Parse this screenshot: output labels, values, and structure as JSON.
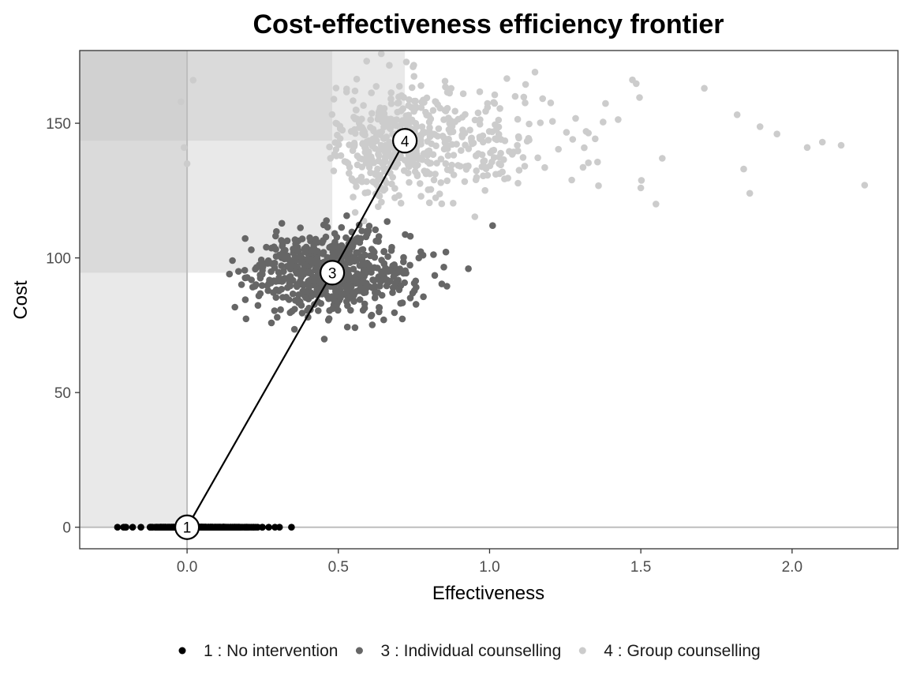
{
  "chart_data": {
    "type": "scatter",
    "title": "Cost-effectiveness efficiency frontier",
    "xlabel": "Effectiveness",
    "ylabel": "Cost",
    "xlim": [
      -0.355,
      2.35
    ],
    "ylim": [
      -8,
      177
    ],
    "x_ticks": [
      0.0,
      0.5,
      1.0,
      1.5,
      2.0
    ],
    "x_tick_labels": [
      "0.0",
      "0.5",
      "1.0",
      "1.5",
      "2.0"
    ],
    "y_ticks": [
      0,
      50,
      100,
      150
    ],
    "y_tick_labels": [
      "0",
      "50",
      "100",
      "150"
    ],
    "grid": false,
    "legend_position": "bottom",
    "series": [
      {
        "id": "1",
        "name": "1 : No intervention",
        "color": "#000000",
        "distribution": {
          "x_mean": 0.04,
          "x_sd": 0.08,
          "y_mean": 0,
          "y_sd": 0
        },
        "sample_points": [
          [
            -0.23,
            0
          ],
          [
            -0.21,
            0
          ],
          [
            -0.18,
            0
          ],
          [
            -0.1,
            0
          ],
          [
            0.05,
            0
          ],
          [
            0.15,
            0
          ],
          [
            0.22,
            0
          ],
          [
            0.27,
            0
          ],
          [
            0.345,
            0
          ]
        ]
      },
      {
        "id": "3",
        "name": "3 : Individual counselling",
        "color": "#666666",
        "distribution": {
          "x_mean": 0.48,
          "x_sd": 0.13,
          "y_mean": 94.5,
          "y_sd": 7.5
        },
        "sample_points": [
          [
            0.14,
            94
          ],
          [
            0.17,
            95
          ],
          [
            0.15,
            99
          ],
          [
            0.6,
            110
          ],
          [
            0.78,
            101
          ],
          [
            0.93,
            96
          ],
          [
            1.01,
            112
          ],
          [
            0.65,
            77
          ],
          [
            0.4,
            78
          ]
        ]
      },
      {
        "id": "4",
        "name": "4 : Group counselling",
        "color": "#cccccc",
        "distribution": {
          "x_mean": 0.72,
          "x_sd": 0.35,
          "y_mean": 143,
          "y_sd": 11
        },
        "sample_points": [
          [
            -0.01,
            141
          ],
          [
            -0.02,
            158
          ],
          [
            0.02,
            166
          ],
          [
            0.0,
            135
          ],
          [
            1.15,
            169
          ],
          [
            1.71,
            163
          ],
          [
            1.95,
            146
          ],
          [
            2.05,
            141
          ],
          [
            2.1,
            143
          ],
          [
            2.24,
            127
          ],
          [
            1.84,
            133
          ],
          [
            1.86,
            124
          ],
          [
            1.5,
            126
          ],
          [
            1.55,
            120
          ]
        ]
      }
    ],
    "frontier": {
      "color": "#000000",
      "points": [
        {
          "label": "1",
          "x": 0.0,
          "y": 0.0
        },
        {
          "label": "3",
          "x": 0.48,
          "y": 94.5
        },
        {
          "label": "4",
          "x": 0.72,
          "y": 143.5
        }
      ]
    }
  }
}
